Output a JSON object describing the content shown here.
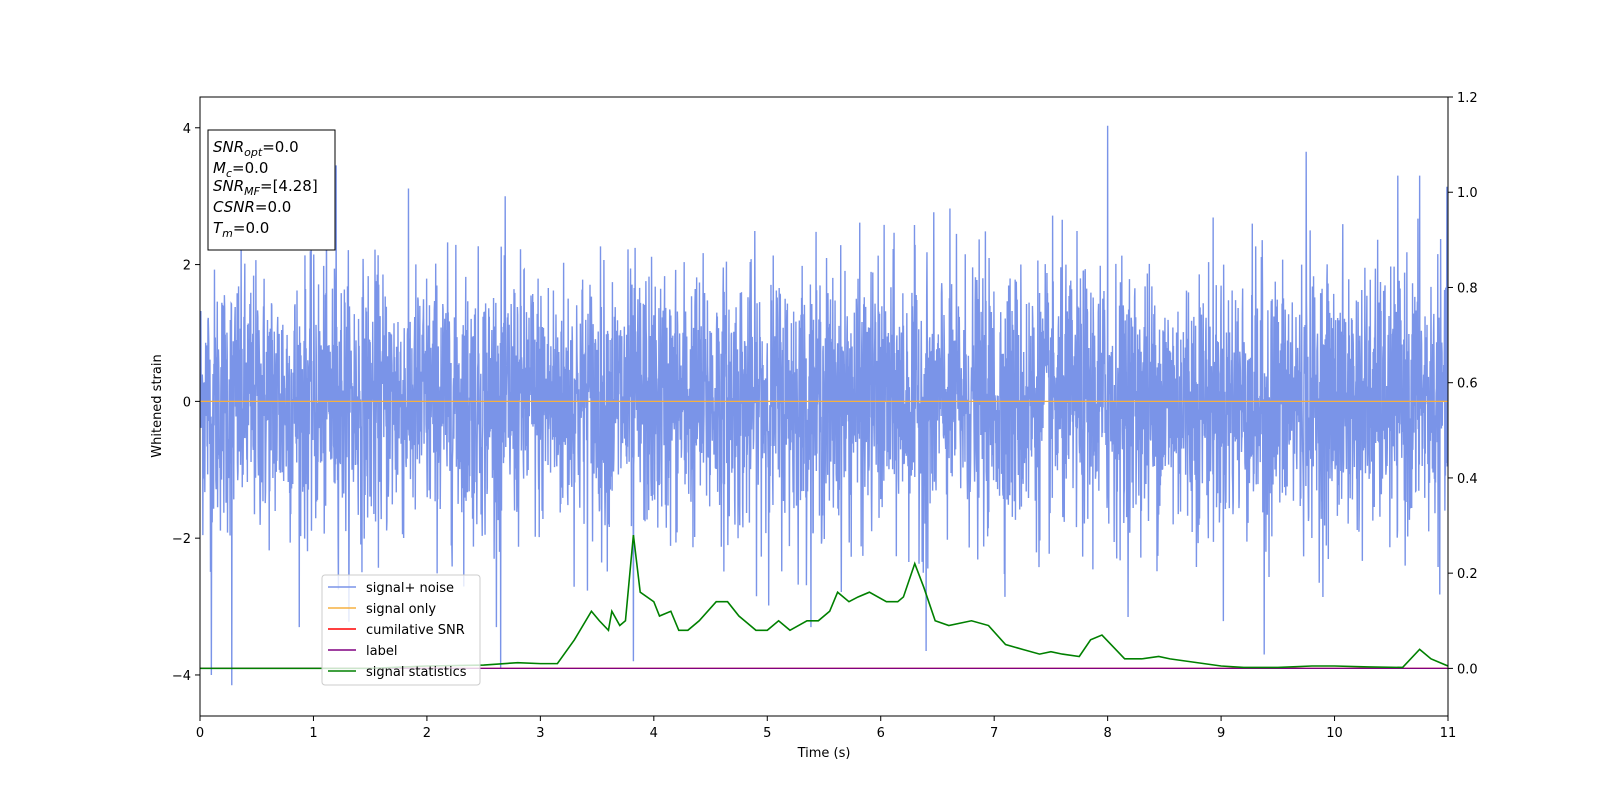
{
  "chart_data": {
    "type": "line",
    "xlabel": "Time (s)",
    "ylabel": "Whitened strain",
    "xlim": [
      0,
      11
    ],
    "ylim_left": [
      -4.6,
      4.45
    ],
    "ylim_right": [
      -0.1,
      1.2
    ],
    "x_ticks": [
      0,
      1,
      2,
      3,
      4,
      5,
      6,
      7,
      8,
      9,
      10,
      11
    ],
    "y_ticks_left": [
      -4,
      -2,
      0,
      2,
      4
    ],
    "y_ticks_right": [
      0.0,
      0.2,
      0.4,
      0.6,
      0.8,
      1.0,
      1.2
    ],
    "grid": false,
    "legend_placement": "lower-left",
    "stats_box": [
      {
        "var": "SNR",
        "sub": "opt",
        "value": "=0.0"
      },
      {
        "var": "M",
        "sub": "c",
        "value": "=0.0"
      },
      {
        "var": "SNR",
        "sub": "MF",
        "value": "=[4.28]"
      },
      {
        "var": "CSNR",
        "sub": "",
        "value": "=0.0"
      },
      {
        "var": "T",
        "sub": "m",
        "value": "=0.0"
      }
    ],
    "series": [
      {
        "name": "signal+ noise",
        "axis": "left",
        "color": "#7a94e8",
        "description_values": "dense noise roughly within [-2.5, 2.5], peaks to about 4.0 near t=8.0 and dips to about -4.15 near t=0.3",
        "noise_band": [
          -2.6,
          2.6
        ],
        "spikes": [
          [
            0.1,
            -4.0
          ],
          [
            0.28,
            -4.15
          ],
          [
            1.2,
            3.45
          ],
          [
            2.65,
            -3.9
          ],
          [
            3.82,
            -3.8
          ],
          [
            6.4,
            -3.65
          ],
          [
            8.0,
            4.03
          ],
          [
            9.75,
            3.65
          ],
          [
            9.38,
            -3.7
          ],
          [
            10.75,
            3.3
          ]
        ]
      },
      {
        "name": "signal only",
        "axis": "left",
        "color": "#f5b041",
        "x": [
          0,
          11
        ],
        "y": [
          0,
          0
        ]
      },
      {
        "name": "cumilative SNR",
        "axis": "right",
        "color": "#ff0000",
        "x": [
          0,
          11
        ],
        "y": [
          0,
          0
        ]
      },
      {
        "name": "label",
        "axis": "right",
        "color": "#800080",
        "x": [
          0,
          11
        ],
        "y": [
          0,
          0
        ]
      },
      {
        "name": "signal statistics",
        "axis": "right",
        "color": "#008000",
        "x": [
          0,
          0.5,
          1.0,
          1.5,
          2.0,
          2.5,
          2.8,
          3.0,
          3.15,
          3.3,
          3.45,
          3.52,
          3.6,
          3.63,
          3.7,
          3.75,
          3.82,
          3.88,
          4.0,
          4.05,
          4.15,
          4.22,
          4.3,
          4.4,
          4.55,
          4.65,
          4.75,
          4.8,
          4.9,
          5.0,
          5.1,
          5.2,
          5.35,
          5.45,
          5.55,
          5.62,
          5.72,
          5.8,
          5.9,
          6.05,
          6.15,
          6.2,
          6.3,
          6.38,
          6.48,
          6.6,
          6.8,
          6.95,
          7.1,
          7.25,
          7.4,
          7.5,
          7.6,
          7.75,
          7.85,
          7.95,
          8.05,
          8.15,
          8.3,
          8.45,
          8.55,
          8.7,
          8.85,
          9.0,
          9.2,
          9.5,
          9.8,
          10.0,
          10.3,
          10.6,
          10.75,
          10.85,
          10.95,
          11.0
        ],
        "y": [
          0.0,
          0.0,
          0.0,
          0.0,
          0.005,
          0.007,
          0.012,
          0.01,
          0.01,
          0.06,
          0.12,
          0.1,
          0.08,
          0.12,
          0.09,
          0.1,
          0.28,
          0.16,
          0.14,
          0.11,
          0.12,
          0.08,
          0.08,
          0.1,
          0.14,
          0.14,
          0.11,
          0.1,
          0.08,
          0.08,
          0.1,
          0.08,
          0.1,
          0.1,
          0.12,
          0.16,
          0.14,
          0.15,
          0.16,
          0.14,
          0.14,
          0.15,
          0.22,
          0.17,
          0.1,
          0.09,
          0.1,
          0.09,
          0.05,
          0.04,
          0.03,
          0.035,
          0.03,
          0.025,
          0.06,
          0.07,
          0.045,
          0.02,
          0.02,
          0.025,
          0.02,
          0.015,
          0.01,
          0.005,
          0.002,
          0.002,
          0.005,
          0.005,
          0.003,
          0.002,
          0.04,
          0.02,
          0.01,
          0.005
        ]
      }
    ]
  },
  "colors": {
    "axes": "#000000",
    "background": "#ffffff"
  }
}
